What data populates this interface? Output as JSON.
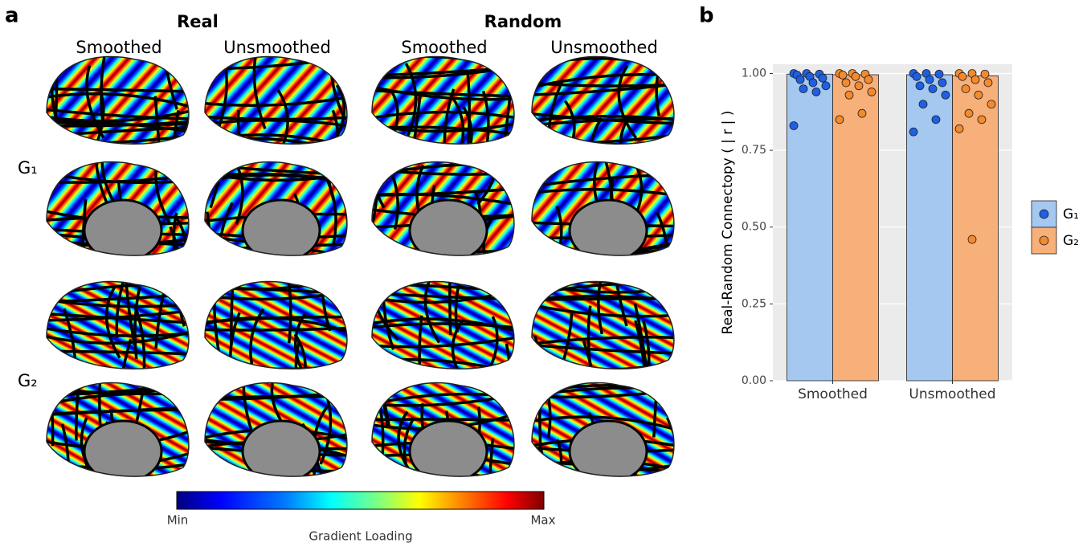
{
  "panel_a": {
    "label": "a",
    "groups": [
      {
        "title": "Real",
        "columns": [
          "Smoothed",
          "Unsmoothed"
        ]
      },
      {
        "title": "Random",
        "columns": [
          "Smoothed",
          "Unsmoothed"
        ]
      }
    ],
    "rows": [
      "G₁",
      "G₂"
    ],
    "colorbar": {
      "min": "Min",
      "max": "Max",
      "title": "Gradient Loading"
    }
  },
  "chart_data": {
    "type": "bar",
    "panel_label": "b",
    "ylabel": "Real-Random Connectopy ( | r | )",
    "categories": [
      "Smoothed",
      "Unsmoothed"
    ],
    "series": [
      {
        "name": "G₁",
        "color": "#a5c8f0",
        "point_color": "#1f5fe3",
        "values": [
          0.998,
          0.996
        ],
        "points": [
          [
            1,
            1,
            0.998,
            0.995,
            0.99,
            0.985,
            0.98,
            0.97,
            0.96,
            0.95,
            0.94,
            0.83
          ],
          [
            1,
            1,
            0.998,
            0.99,
            0.98,
            0.97,
            0.96,
            0.95,
            0.93,
            0.9,
            0.85,
            0.81
          ]
        ]
      },
      {
        "name": "G₂",
        "color": "#f8b07a",
        "point_color": "#f58a2c",
        "values": [
          0.996,
          0.992
        ],
        "points": [
          [
            1,
            1,
            0.998,
            0.995,
            0.99,
            0.98,
            0.97,
            0.96,
            0.94,
            0.93,
            0.87,
            0.85
          ],
          [
            1,
            1,
            0.998,
            0.99,
            0.98,
            0.97,
            0.95,
            0.93,
            0.9,
            0.87,
            0.85,
            0.82,
            0.46
          ]
        ]
      }
    ],
    "ylim": [
      0,
      1.03
    ],
    "yticks": [
      {
        "value": 0,
        "label": "0.00"
      },
      {
        "value": 0.25,
        "label": "0.25"
      },
      {
        "value": 0.5,
        "label": "0.50"
      },
      {
        "value": 0.75,
        "label": "0.75"
      },
      {
        "value": 1,
        "label": "1.00"
      }
    ],
    "grid": true,
    "legend": "right"
  }
}
